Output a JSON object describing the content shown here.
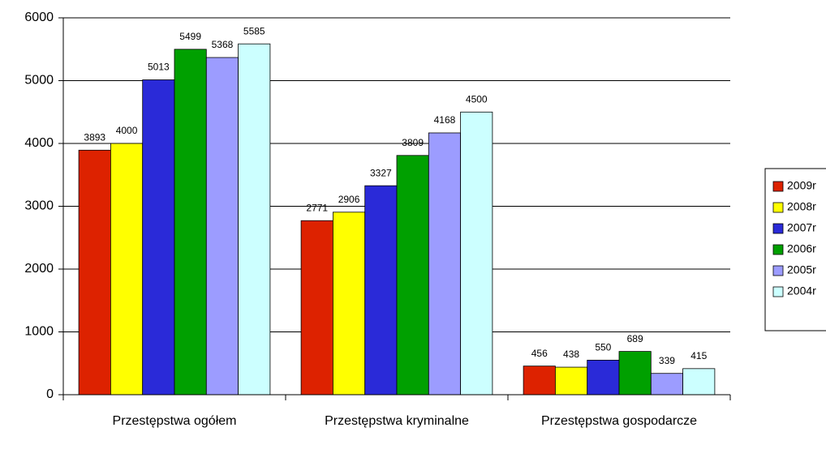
{
  "chart_data": {
    "type": "bar",
    "categories": [
      "Przestępstwa ogółem",
      "Przestępstwa kryminalne",
      "Przestępstwa gospodarcze"
    ],
    "series": [
      {
        "name": "2009r",
        "color": "#dd2200",
        "values": [
          3893,
          2771,
          456
        ]
      },
      {
        "name": "2008r",
        "color": "#ffff00",
        "values": [
          4000,
          2906,
          438
        ]
      },
      {
        "name": "2007r",
        "color": "#2a2ad8",
        "values": [
          5013,
          3327,
          550
        ]
      },
      {
        "name": "2006r",
        "color": "#00a000",
        "values": [
          5499,
          3809,
          689
        ]
      },
      {
        "name": "2005r",
        "color": "#9c9cff",
        "values": [
          5368,
          4168,
          339
        ]
      },
      {
        "name": "2004r",
        "color": "#ccffff",
        "values": [
          5585,
          4500,
          415
        ]
      }
    ],
    "ylim": [
      0,
      6000
    ],
    "yticks": [
      0,
      1000,
      2000,
      3000,
      4000,
      5000,
      6000
    ],
    "grid": true,
    "legend": "right"
  }
}
